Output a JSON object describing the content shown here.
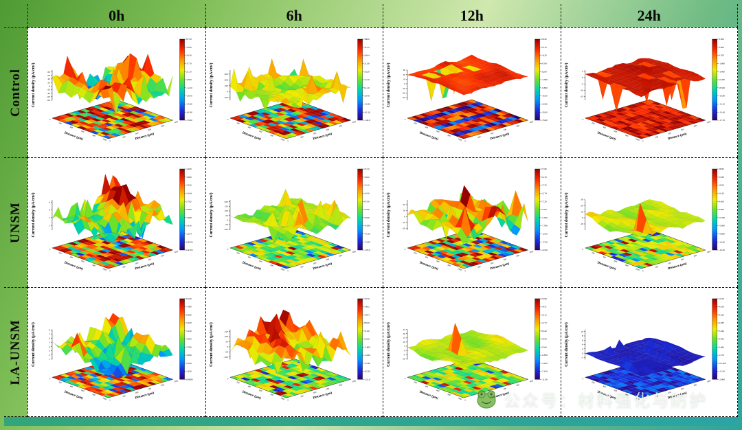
{
  "figure": {
    "col_headers": [
      "0h",
      "6h",
      "12h",
      "24h"
    ],
    "row_headers": [
      "Control",
      "UNSM",
      "LA-UNSM"
    ],
    "watermark": {
      "text": "公众号：材料强化与防护",
      "icon": "mascot-icon"
    },
    "colors": {
      "frame_green": "#4e9a33",
      "frame_light": "#cfe8ae",
      "frame_teal": "#2da49c",
      "grid_dash": "#111111",
      "plot_bg": "#ffffff"
    }
  },
  "chart_common": {
    "zlabel": "Current density (μA/cm²)",
    "xlabel": "Distance (μm)",
    "ylabel": "Distance (μm)",
    "distance_ticks": [
      0,
      200,
      400,
      600,
      800,
      1000
    ],
    "colormap": "rainbow",
    "colorbar_levels": 11
  },
  "chart_data": [
    {
      "row": "Control",
      "col": "0h",
      "type": "surface_3d",
      "zlim": [
        -80,
        90
      ],
      "zticks": [
        80,
        60,
        40,
        20,
        0,
        -20,
        -40,
        -60,
        -80
      ],
      "colorbar_ticks": [
        "87.50",
        "70.90",
        "54.30",
        "37.70",
        "21.10",
        "4.500",
        "-12.10",
        "-28.70",
        "-45.30",
        "-61.90",
        "-78.50"
      ],
      "look": {
        "seed": 11,
        "style": "spiky",
        "tmin": 0.05,
        "tmax": 1,
        "floor": "redmix"
      }
    },
    {
      "row": "Control",
      "col": "6h",
      "type": "surface_3d",
      "zlim": [
        -150,
        370
      ],
      "zticks": [
        300,
        200,
        100,
        0,
        -100
      ],
      "colorbar_ticks": [
        "366.0",
        "315.2",
        "264.4",
        "213.6",
        "162.8",
        "112.0",
        "61.20",
        "10.40",
        "-40.40",
        "-91.20",
        "-142.0"
      ],
      "look": {
        "seed": 22,
        "style": "mid",
        "tmin": 0.3,
        "tmax": 1,
        "floor": "redmix"
      }
    },
    {
      "row": "Control",
      "col": "12h",
      "type": "surface_3d",
      "zlim": [
        -36,
        30
      ],
      "zticks": [
        30,
        20,
        10,
        0,
        -10,
        -20,
        -30
      ],
      "colorbar_ticks": [
        "29.20",
        "22.70",
        "16.20",
        "9.700",
        "3.200",
        "-3.300",
        "-9.800",
        "-16.30",
        "-22.80",
        "-29.30",
        "-35.80"
      ],
      "look": {
        "seed": 33,
        "style": "flat",
        "tmin": 0.0,
        "tmax": 1,
        "floor": "streak"
      }
    },
    {
      "row": "Control",
      "col": "24h",
      "type": "surface_3d",
      "zlim": [
        -18,
        6
      ],
      "zticks": [
        5,
        0,
        -5,
        -10,
        -15
      ],
      "colorbar_ticks": [
        "5.300",
        "3.000",
        "0.700",
        "-1.600",
        "-3.900",
        "-6.200",
        "-8.500",
        "-10.80",
        "-13.10",
        "-15.40",
        "-17.70"
      ],
      "look": {
        "seed": 44,
        "style": "flat",
        "tmin": 0.55,
        "tmax": 1,
        "floor": "red"
      }
    },
    {
      "row": "UNSM",
      "col": "0h",
      "type": "surface_3d",
      "zlim": [
        0.4,
        4.3
      ],
      "zticks": [
        4,
        3,
        2,
        1
      ],
      "colorbar_ticks": [
        "4.290",
        "3.908",
        "3.526",
        "3.144",
        "2.762",
        "2.380",
        "1.998",
        "1.616",
        "1.234",
        "0.8520",
        "0.4700"
      ],
      "look": {
        "seed": 55,
        "style": "spiky",
        "tmin": 0.05,
        "tmax": 1,
        "floor": "redmix"
      }
    },
    {
      "row": "UNSM",
      "col": "6h",
      "type": "surface_3d",
      "zlim": [
        -110,
        220
      ],
      "zticks": [
        200,
        150,
        100,
        50,
        0,
        -50,
        -100
      ],
      "colorbar_ticks": [
        "215.0",
        "183.0",
        "151.0",
        "119.0",
        "87.00",
        "55.00",
        "23.00",
        "-9.000",
        "-41.00",
        "-73.00",
        "-105.0"
      ],
      "look": {
        "seed": 66,
        "style": "mid",
        "tmin": 0.25,
        "tmax": 0.9,
        "floor": "greenmix"
      }
    },
    {
      "row": "UNSM",
      "col": "12h",
      "type": "surface_3d",
      "zlim": [
        -23,
        28
      ],
      "zticks": [
        20,
        10,
        0,
        -10,
        -20
      ],
      "colorbar_ticks": [
        "27.80",
        "22.78",
        "17.76",
        "12.74",
        "7.720",
        "2.700",
        "-2.320",
        "-7.340",
        "-12.36",
        "-17.38",
        "-22.40"
      ],
      "look": {
        "seed": 77,
        "style": "spiky",
        "tmin": 0.15,
        "tmax": 1,
        "floor": "redmix"
      }
    },
    {
      "row": "UNSM",
      "col": "24h",
      "type": "surface_3d",
      "zlim": [
        -20,
        29
      ],
      "zticks": [
        30,
        20,
        10,
        0,
        -10
      ],
      "colorbar_ticks": [
        "28.60",
        "23.80",
        "19.00",
        "14.20",
        "9.400",
        "4.600",
        "-0.200",
        "-5.000",
        "-9.800",
        "-14.60",
        "-19.40"
      ],
      "look": {
        "seed": 88,
        "style": "onespike",
        "tmin": 0.3,
        "tmax": 1,
        "floor": "greenmix"
      }
    },
    {
      "row": "LA-UNSM",
      "col": "0h",
      "type": "surface_3d",
      "zlim": [
        0.9,
        8.1
      ],
      "zticks": [
        8,
        7,
        6,
        5,
        4,
        3,
        2,
        1
      ],
      "colorbar_ticks": [
        "8.100",
        "7.380",
        "6.660",
        "5.940",
        "5.220",
        "4.500",
        "3.780",
        "3.060",
        "2.340",
        "1.620",
        "0.9000"
      ],
      "look": {
        "seed": 99,
        "style": "spiky",
        "tmin": 0.1,
        "tmax": 1,
        "floor": "redmix"
      }
    },
    {
      "row": "LA-UNSM",
      "col": "6h",
      "type": "surface_3d",
      "zlim": [
        -125,
        170
      ],
      "zticks": [
        150,
        100,
        50,
        0,
        -50,
        -100
      ],
      "colorbar_ticks": [
        "167.0",
        "138.2",
        "109.4",
        "80.60",
        "51.80",
        "23.00",
        "-5.800",
        "-34.60",
        "-63.40",
        "-92.20",
        "-121.0"
      ],
      "look": {
        "seed": 111,
        "style": "spiky",
        "tmin": 0.3,
        "tmax": 1,
        "floor": "greenmix"
      }
    },
    {
      "row": "LA-UNSM",
      "col": "12h",
      "type": "surface_3d",
      "zlim": [
        -11,
        25
      ],
      "zticks": [
        25,
        20,
        15,
        10,
        5,
        0,
        -5,
        -10
      ],
      "colorbar_ticks": [
        "22.90",
        "19.51",
        "16.12",
        "12.73",
        "9.340",
        "5.950",
        "2.560",
        "-0.830",
        "-4.220",
        "-7.610",
        "-11.00"
      ],
      "look": {
        "seed": 122,
        "style": "onespike",
        "tmin": 0.3,
        "tmax": 1,
        "floor": "greenmix"
      }
    },
    {
      "row": "LA-UNSM",
      "col": "24h",
      "type": "surface_3d",
      "zlim": [
        -3,
        11
      ],
      "zticks": [
        10,
        8,
        6,
        4,
        2,
        0,
        -2
      ],
      "colorbar_ticks": [
        "11.00",
        "9.610",
        "8.220",
        "6.830",
        "5.440",
        "4.050",
        "2.660",
        "1.270",
        "-0.1200",
        "-1.510",
        "-2.900"
      ],
      "look": {
        "seed": 133,
        "style": "low",
        "tmin": 0.02,
        "tmax": 0.45,
        "floor": "blue"
      }
    }
  ]
}
